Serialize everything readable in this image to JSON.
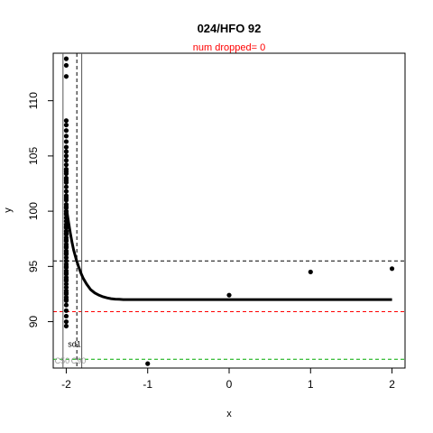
{
  "chart_data": {
    "type": "scatter",
    "title": "024/HFO 92",
    "subtitle": "num dropped= 0",
    "subtitle_color": "#ff0000",
    "xlabel": "x",
    "ylabel": "y",
    "xlim": [
      -2.16,
      2.16
    ],
    "ylim": [
      85.8,
      114.3
    ],
    "x_ticks": [
      -2,
      -1,
      0,
      1,
      2
    ],
    "x_tick_labels": [
      "-2",
      "-1",
      "0",
      "1",
      "2"
    ],
    "y_ticks": [
      90,
      95,
      100,
      105,
      110
    ],
    "y_tick_labels": [
      "90",
      "95",
      "100",
      "105",
      "110"
    ],
    "grid": false,
    "legend": "none",
    "points": {
      "name": "",
      "color": "#000000",
      "x": [
        -2,
        -2,
        -2,
        -2,
        -2,
        -2,
        -2,
        -2,
        -2,
        -2,
        -2,
        -2,
        -2,
        -2,
        -2,
        -2,
        -2,
        -2,
        -2,
        -2,
        -2,
        -2,
        -2,
        -2,
        -2,
        -2,
        -2,
        -2,
        -2,
        -2,
        -2,
        -2,
        -2,
        -2,
        -2,
        -2,
        -2,
        -2,
        -2,
        -2,
        -2,
        -2,
        -2,
        -2,
        -2,
        -2,
        -2,
        -2,
        -2,
        -2,
        -2,
        -2,
        -2,
        -2,
        -2,
        -2,
        -2,
        -2,
        -2,
        -2,
        -2,
        -2,
        -2,
        -2,
        -2,
        -2,
        -2,
        -2,
        -2,
        -2,
        -2,
        -1,
        0,
        1,
        2
      ],
      "y": [
        113.8,
        113.2,
        112.2,
        108.2,
        107.8,
        107.3,
        106.8,
        106.3,
        105.8,
        105.4,
        105.0,
        104.6,
        104.2,
        103.8,
        103.4,
        103.0,
        102.6,
        102.2,
        101.8,
        101.4,
        101.0,
        100.6,
        100.3,
        100.0,
        99.7,
        99.4,
        99.1,
        98.8,
        98.5,
        98.2,
        97.9,
        97.6,
        97.3,
        97.0,
        96.7,
        96.4,
        96.1,
        95.8,
        95.5,
        95.2,
        94.9,
        94.6,
        94.3,
        94.0,
        93.7,
        93.4,
        93.1,
        92.8,
        92.5,
        92.2,
        91.9,
        91.5,
        91.0,
        90.5,
        90.0,
        89.6,
        103.6,
        101.2,
        99.8,
        98.6,
        97.4,
        96.2,
        95.0,
        93.8,
        92.6,
        92.0,
        94.4,
        96.8,
        98.0,
        100.4,
        102.8,
        86.2,
        92.4,
        94.5,
        94.8
      ]
    },
    "curve": {
      "name": "",
      "color": "#000000",
      "x": [
        -1.99,
        -1.97,
        -1.95,
        -1.93,
        -1.91,
        -1.88,
        -1.85,
        -1.82,
        -1.79,
        -1.75,
        -1.7,
        -1.65,
        -1.6,
        -1.55,
        -1.5,
        -1.45,
        -1.4,
        -1.35,
        -1.3,
        -1.2,
        -1.1,
        -1.0,
        -0.5,
        0.0,
        0.5,
        1.0,
        1.5,
        2.0
      ],
      "y": [
        99.9,
        98.9,
        98.0,
        97.2,
        96.5,
        95.7,
        95.0,
        94.4,
        93.9,
        93.4,
        92.9,
        92.6,
        92.4,
        92.25,
        92.15,
        92.08,
        92.04,
        92.02,
        92.0,
        92.0,
        92.0,
        92.0,
        92.0,
        92.0,
        92.0,
        92.0,
        92.0,
        92.0
      ]
    },
    "hlines": [
      {
        "y": 95.5,
        "color": "#000000",
        "dash": "dashed"
      },
      {
        "y": 90.9,
        "color": "#ff0000",
        "dash": "dashed"
      },
      {
        "y": 86.6,
        "color": "#00aa00",
        "dash": "dashed"
      }
    ],
    "vlines": [
      {
        "x": -2.04,
        "color": "#555555",
        "dash": "solid"
      },
      {
        "x": -1.87,
        "color": "#000000",
        "dash": "dashed"
      },
      {
        "x": -1.81,
        "color": "#555555",
        "dash": "solid"
      }
    ],
    "annotations": [
      {
        "text": "sd1",
        "x": -1.9,
        "y": 87.7,
        "color": "#000000"
      },
      {
        "text": "C50",
        "x": -2.05,
        "y": 86.2,
        "color": "#999999"
      },
      {
        "text": "C90",
        "x": -1.85,
        "y": 86.2,
        "color": "#999999"
      }
    ]
  }
}
